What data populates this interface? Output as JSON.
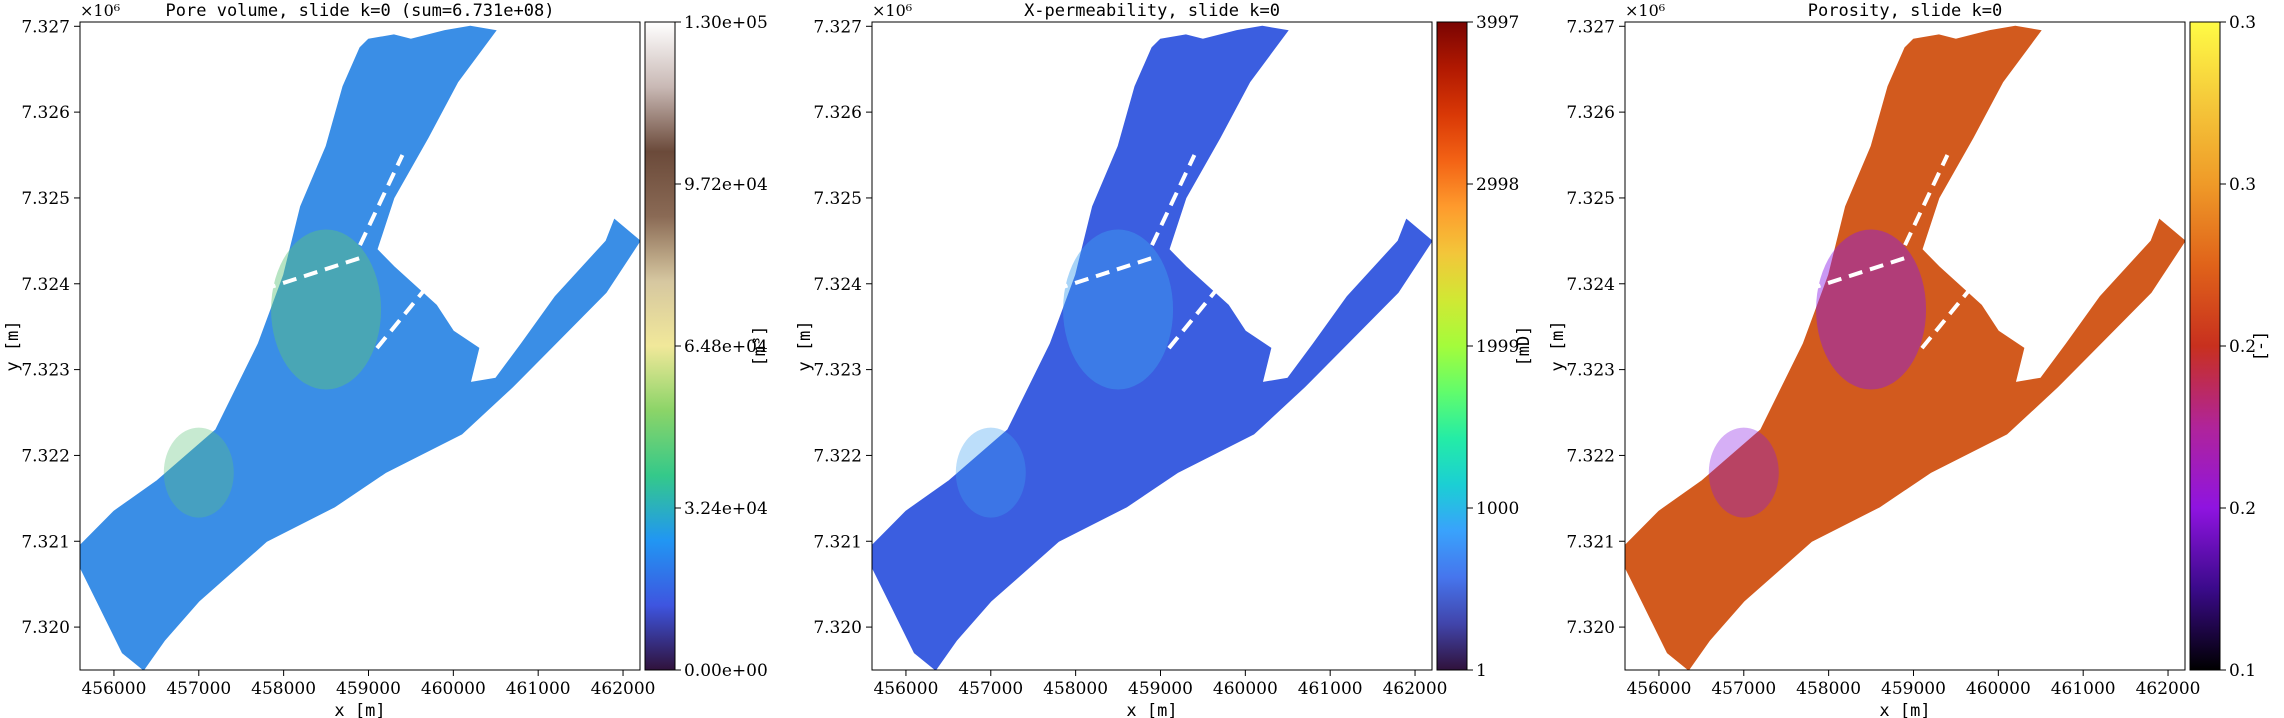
{
  "chart_data": [
    {
      "type": "heatmap",
      "title": "Pore volume, slide k=0 (sum=6.731e+08)",
      "xlabel": "x [m]",
      "ylabel": "y [m]",
      "xticks": [
        "456000",
        "457000",
        "458000",
        "459000",
        "460000",
        "461000",
        "462000"
      ],
      "yticks": [
        "7.320",
        "7.321",
        "7.322",
        "7.323",
        "7.324",
        "7.325",
        "7.326",
        "7.327"
      ],
      "y_offset_label": "×10⁶",
      "xlim": [
        455600,
        462200
      ],
      "ylim": [
        7319500,
        7327050
      ],
      "colorbar": {
        "label": "[m³]",
        "ticks": [
          "0.00e+00",
          "3.24e+04",
          "6.48e+04",
          "9.72e+04",
          "1.30e+05"
        ],
        "range": [
          0,
          130000
        ],
        "colormap": [
          "#30123b",
          "#3e55e0",
          "#2196f3",
          "#34c98a",
          "#8bd468",
          "#f1e89a",
          "#d6c7a0",
          "#8a6a55",
          "#6b4a3a",
          "#c9b9b5",
          "#ffffff"
        ]
      },
      "region_color": "#3a8ee6",
      "highlight_color": "#5ec47a"
    },
    {
      "type": "heatmap",
      "title": "X-permeability, slide k=0",
      "xlabel": "x [m]",
      "ylabel": "y [m]",
      "xticks": [
        "456000",
        "457000",
        "458000",
        "459000",
        "460000",
        "461000",
        "462000"
      ],
      "yticks": [
        "7.320",
        "7.321",
        "7.322",
        "7.323",
        "7.324",
        "7.325",
        "7.326",
        "7.327"
      ],
      "y_offset_label": "×10⁶",
      "xlim": [
        455600,
        462200
      ],
      "ylim": [
        7319500,
        7327050
      ],
      "colorbar": {
        "label": "[mD]",
        "ticks": [
          "1",
          "1000",
          "1999",
          "2998",
          "3997"
        ],
        "range": [
          1,
          3997
        ],
        "colormap": [
          "#30123b",
          "#4145ab",
          "#4675ed",
          "#39a2fc",
          "#1bcfd4",
          "#24eca6",
          "#61fc6c",
          "#a4fc3b",
          "#d1e834",
          "#f3c63a",
          "#fe9b2d",
          "#f36315",
          "#d93806",
          "#b11901",
          "#7a0402"
        ]
      },
      "region_color": "#3b5ee0",
      "highlight_color": "#3fa0f0"
    },
    {
      "type": "heatmap",
      "title": "Porosity, slide k=0",
      "xlabel": "x [m]",
      "ylabel": "y [m]",
      "xticks": [
        "456000",
        "457000",
        "458000",
        "459000",
        "460000",
        "461000",
        "462000"
      ],
      "yticks": [
        "7.320",
        "7.321",
        "7.322",
        "7.323",
        "7.324",
        "7.325",
        "7.326",
        "7.327"
      ],
      "y_offset_label": "×10⁶",
      "xlim": [
        455600,
        462200
      ],
      "ylim": [
        7319500,
        7327050
      ],
      "colorbar": {
        "label": "[-]",
        "ticks": [
          "0.1",
          "0.2",
          "0.2",
          "0.3",
          "0.3"
        ],
        "range": [
          0.1,
          0.3
        ],
        "colormap": [
          "#000000",
          "#3a0a8a",
          "#8f14e0",
          "#b0249a",
          "#c8301e",
          "#e0631a",
          "#ef9a28",
          "#f5c83a",
          "#fffb45"
        ]
      },
      "region_color": "#d25a1e",
      "highlight_color": "#8a1ae6"
    }
  ]
}
